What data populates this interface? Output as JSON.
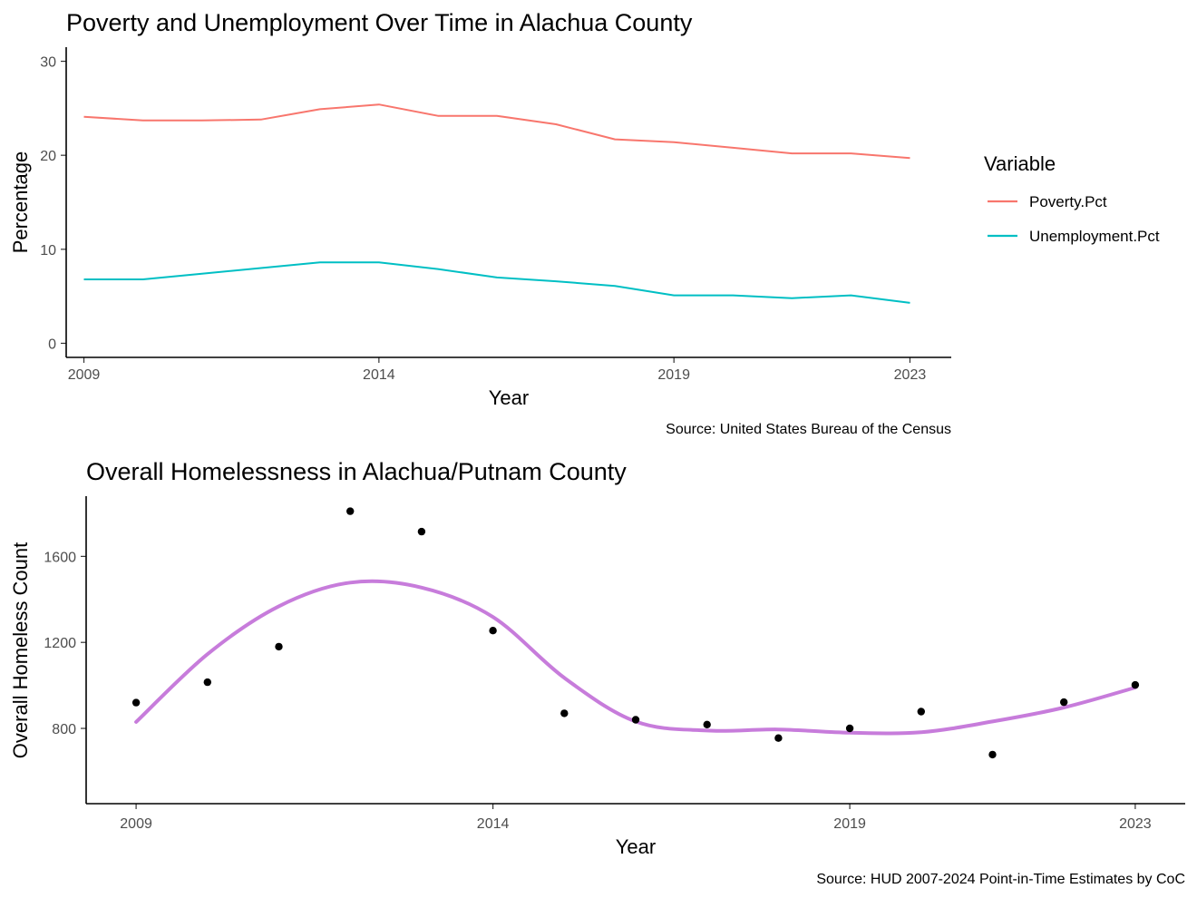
{
  "chart_data": [
    {
      "type": "line",
      "title": "Poverty and Unemployment Over Time in Alachua County",
      "xlabel": "Year",
      "ylabel": "Percentage",
      "caption": "Source: United States Bureau of the Census",
      "xlim": [
        2008.7,
        2023.7
      ],
      "ylim": [
        -1.5,
        31.5
      ],
      "xticks": [
        "2009",
        "2014",
        "2019",
        "2023"
      ],
      "yticks": [
        "0",
        "10",
        "20",
        "30"
      ],
      "grid": false,
      "legend": {
        "title": "Variable",
        "position": "right",
        "items": [
          "Poverty.Pct",
          "Unemployment.Pct"
        ]
      },
      "x": [
        2009,
        2010,
        2011,
        2012,
        2013,
        2014,
        2015,
        2016,
        2017,
        2018,
        2019,
        2020,
        2021,
        2022,
        2023
      ],
      "series": [
        {
          "name": "Poverty.Pct",
          "color": "#F8766D",
          "values": [
            24.1,
            23.7,
            23.7,
            23.8,
            24.9,
            25.4,
            24.2,
            24.2,
            23.3,
            21.7,
            21.4,
            20.8,
            20.2,
            20.2,
            19.7
          ]
        },
        {
          "name": "Unemployment.Pct",
          "color": "#00BFC4",
          "values": [
            6.8,
            6.8,
            7.4,
            8.0,
            8.6,
            8.6,
            7.9,
            7.0,
            6.6,
            6.1,
            5.1,
            5.1,
            4.8,
            5.1,
            4.3
          ]
        }
      ]
    },
    {
      "type": "scatter",
      "title": "Overall Homelessness in Alachua/Putnam County",
      "xlabel": "Year",
      "ylabel": "Overall Homeless Count",
      "caption": "Source: HUD 2007-2024 Point-in-Time Estimates by CoC",
      "xlim": [
        2008.3,
        2023.7
      ],
      "ylim": [
        450,
        1880
      ],
      "xticks": [
        "2009",
        "2014",
        "2019",
        "2023"
      ],
      "yticks": [
        "800",
        "1200",
        "1600"
      ],
      "grid": false,
      "point_color": "#000000",
      "smooth_color": "#C77CDB",
      "x": [
        2009,
        2010,
        2011,
        2012,
        2013,
        2014,
        2015,
        2016,
        2017,
        2018,
        2019,
        2020,
        2021,
        2022,
        2023
      ],
      "values": [
        920,
        1015,
        1180,
        1810,
        1715,
        1255,
        870,
        840,
        818,
        755,
        800,
        878,
        678,
        922,
        1002
      ],
      "smooth": [
        830,
        1145,
        1368,
        1478,
        1455,
        1318,
        1035,
        832,
        790,
        795,
        780,
        782,
        832,
        897,
        990
      ]
    }
  ]
}
